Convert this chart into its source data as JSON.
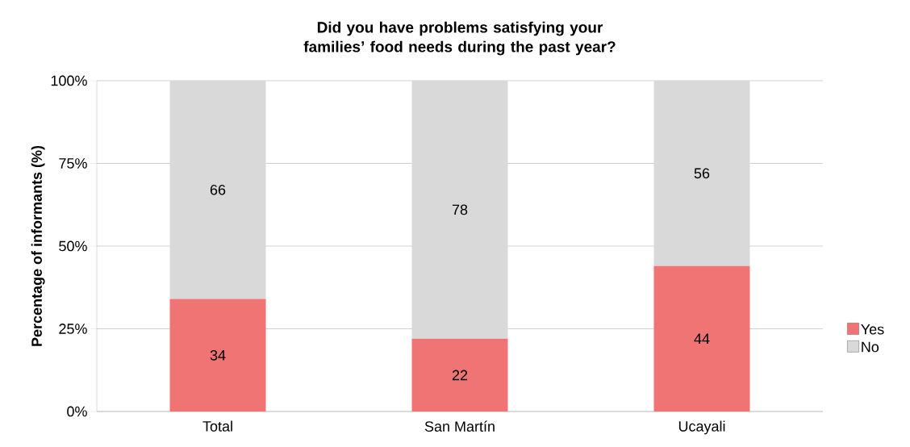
{
  "chart_data": {
    "type": "bar",
    "stacked": true,
    "title": "Did you have problems satisfying your families’ food needs during the past year?",
    "ylabel": "Percentage of informants (%)",
    "categories": [
      "Total",
      "San Martín",
      "Ucayali"
    ],
    "series": [
      {
        "name": "Yes",
        "color": "#f07474",
        "values": [
          34,
          22,
          44
        ]
      },
      {
        "name": "No",
        "color": "#d9d9d9",
        "values": [
          66,
          78,
          56
        ]
      }
    ],
    "ylim": [
      0,
      100
    ],
    "yticks": [
      {
        "value": 0,
        "label": "0%"
      },
      {
        "value": 25,
        "label": "25%"
      },
      {
        "value": 50,
        "label": "50%"
      },
      {
        "value": 75,
        "label": "75%"
      },
      {
        "value": 100,
        "label": "100%"
      }
    ],
    "grid": "y",
    "legend": "right",
    "data_labels": true
  }
}
